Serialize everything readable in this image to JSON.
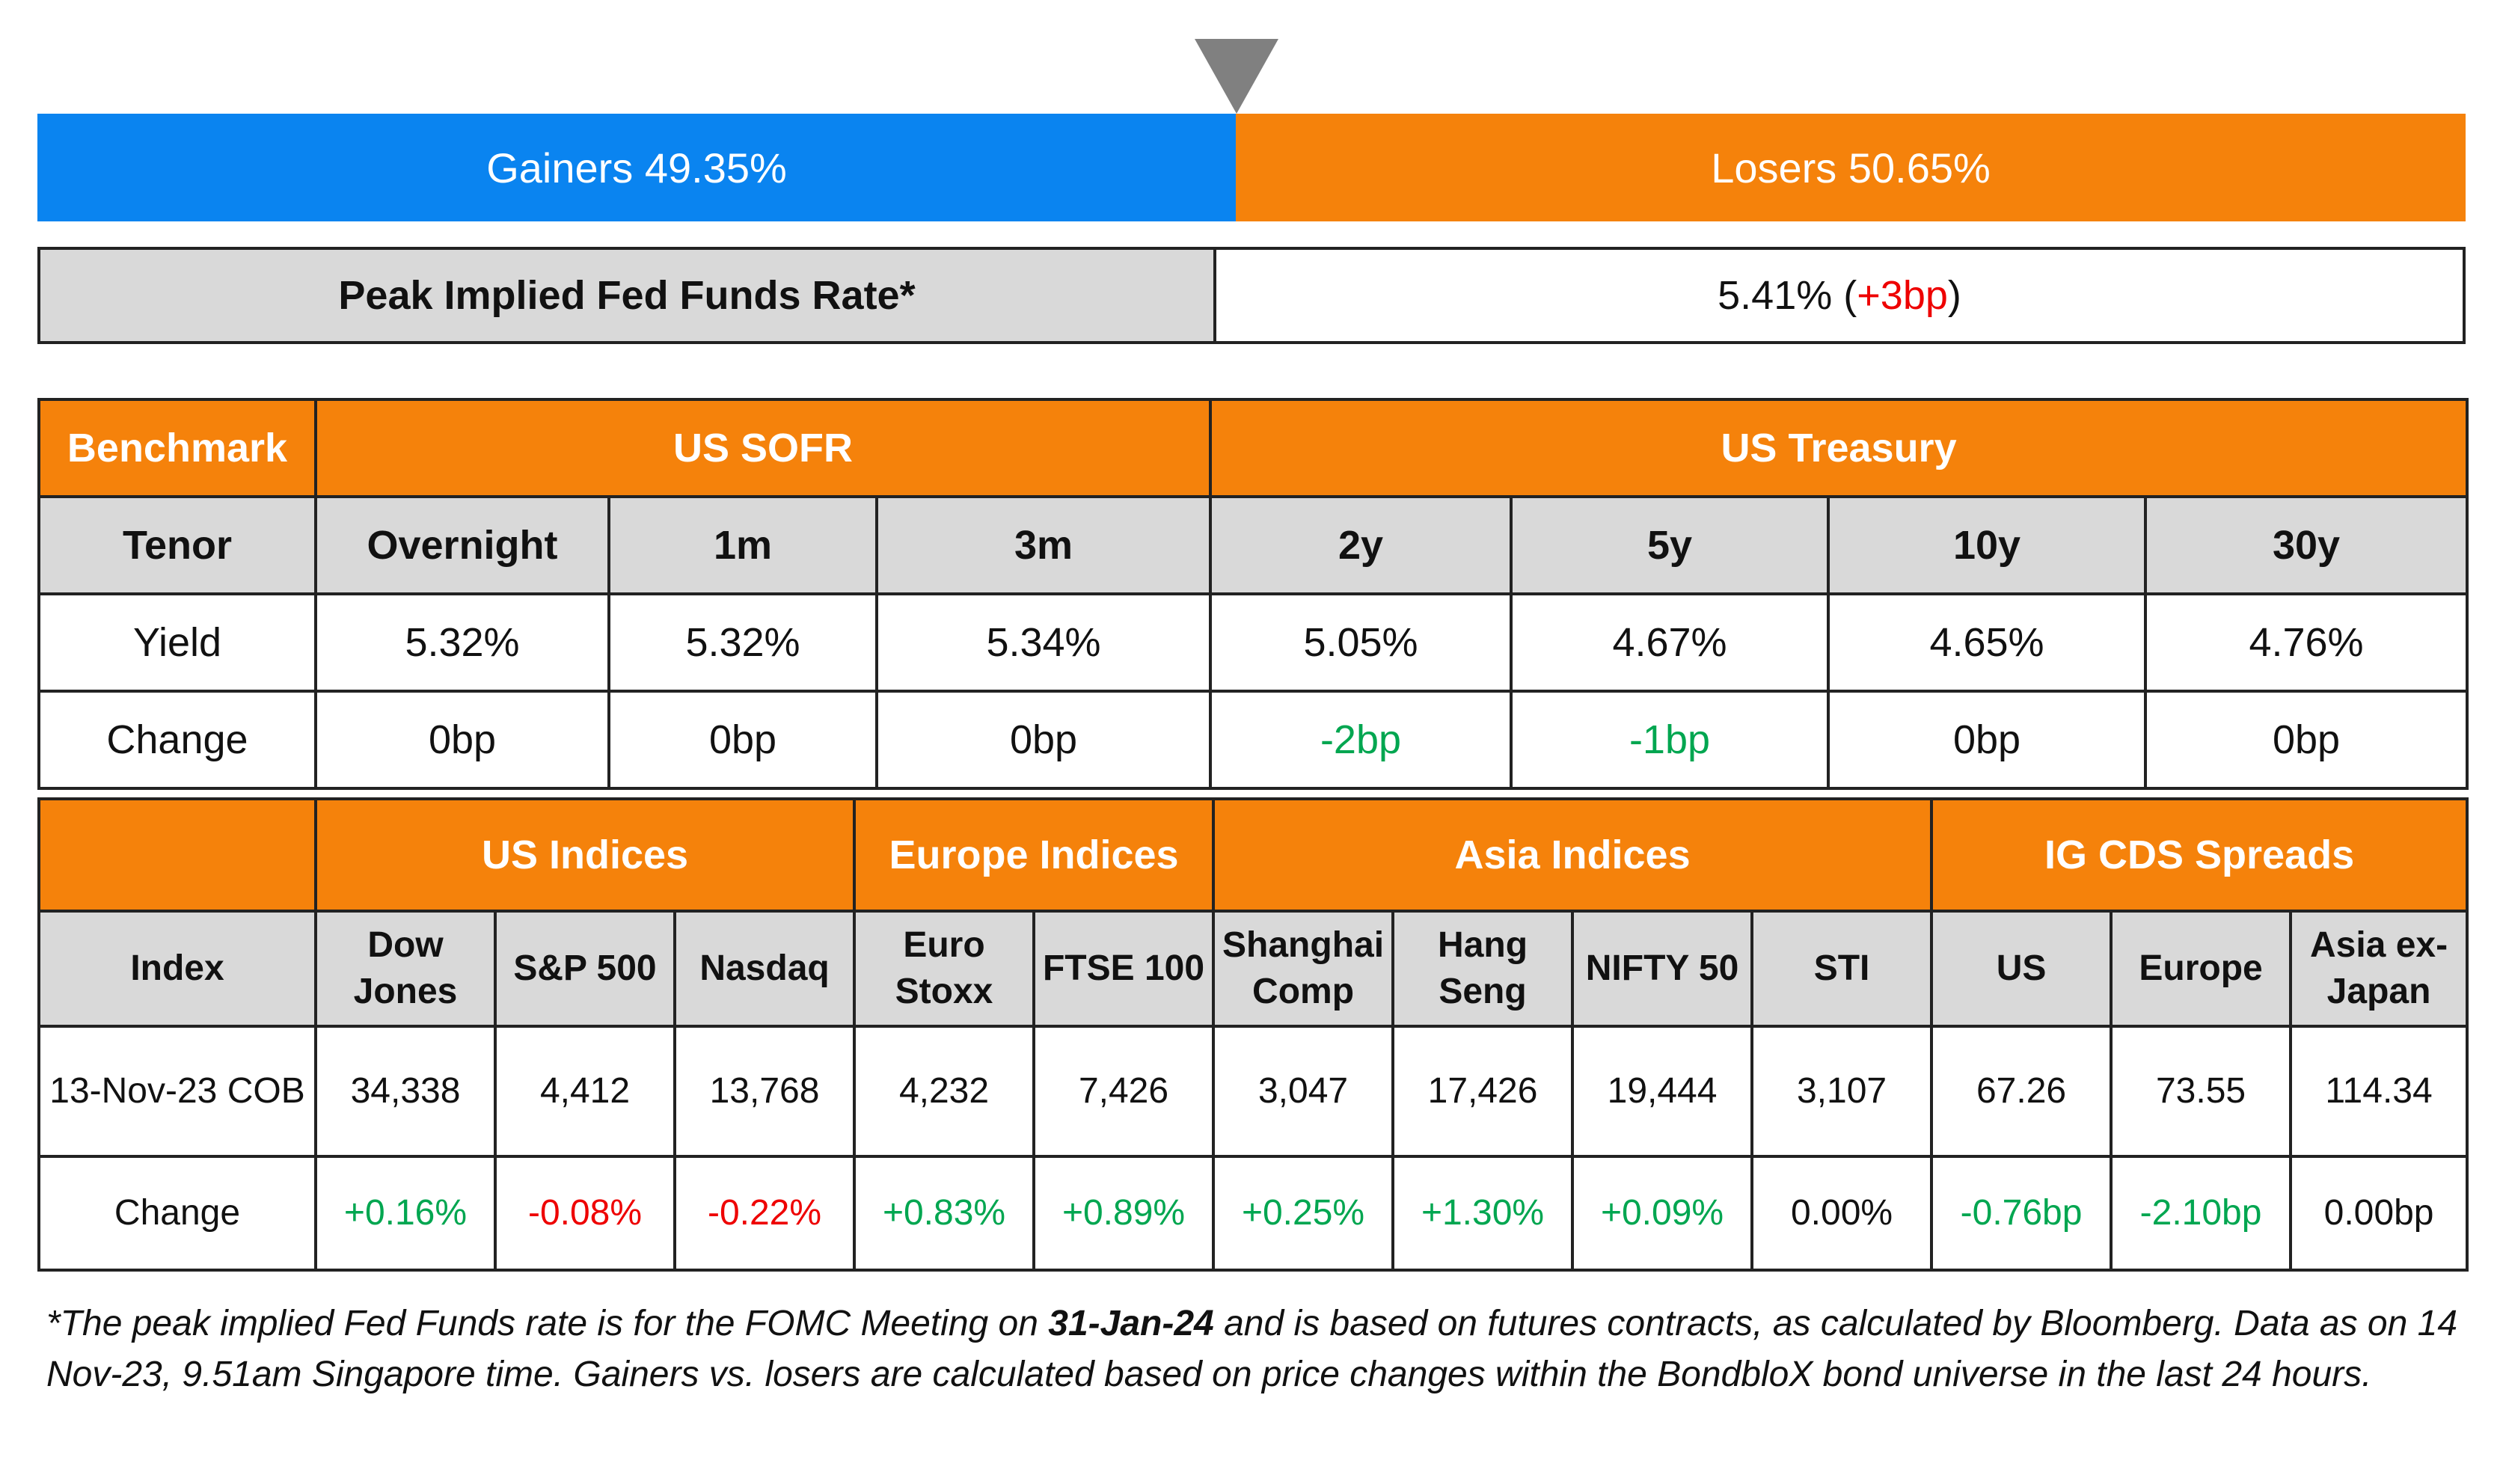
{
  "gainers_losers": {
    "gainers_label": "Gainers 49.35%",
    "losers_label": "Losers 50.65%",
    "gainers_pct": 49.35,
    "losers_pct": 50.65,
    "gainers_color": "#0a84f0",
    "losers_color": "#f5820b",
    "marker_icon": "triangle-down-icon"
  },
  "fed": {
    "label": "Peak Implied Fed Funds Rate*",
    "value": "5.41%",
    "change": "+3bp"
  },
  "rates": {
    "benchmark_label": "Benchmark",
    "sofr_label": "US SOFR",
    "treasury_label": "US Treasury",
    "tenor_label": "Tenor",
    "yield_label": "Yield",
    "change_label": "Change",
    "tenors": [
      "Overnight",
      "1m",
      "3m",
      "2y",
      "5y",
      "10y",
      "30y"
    ],
    "yields": [
      "5.32%",
      "5.32%",
      "5.34%",
      "5.05%",
      "4.67%",
      "4.65%",
      "4.76%"
    ],
    "changes": [
      "0bp",
      "0bp",
      "0bp",
      "-2bp",
      "-1bp",
      "0bp",
      "0bp"
    ]
  },
  "indices": {
    "groups": [
      "US Indices",
      "Europe Indices",
      "Asia Indices",
      "IG CDS Spreads"
    ],
    "index_label": "Index",
    "date_label": "13-Nov-23 COB",
    "change_label": "Change",
    "names": [
      "Dow Jones",
      "S&P 500",
      "Nasdaq",
      "Euro Stoxx",
      "FTSE 100",
      "Shanghai Comp",
      "Hang Seng",
      "NIFTY 50",
      "STI",
      "US",
      "Europe",
      "Asia ex-Japan"
    ],
    "values": [
      "34,338",
      "4,412",
      "13,768",
      "4,232",
      "7,426",
      "3,047",
      "17,426",
      "19,444",
      "3,107",
      "67.26",
      "73.55",
      "114.34"
    ],
    "changes": [
      "+0.16%",
      "-0.08%",
      "-0.22%",
      "+0.83%",
      "+0.89%",
      "+0.25%",
      "+1.30%",
      "+0.09%",
      "0.00%",
      "-0.76bp",
      "-2.10bp",
      "0.00bp"
    ]
  },
  "footnote": {
    "text_1": "*The peak implied Fed Funds rate is for the FOMC Meeting on ",
    "date": "31-Jan-24",
    "text_2": " and is based on futures contracts, as calculated by Bloomberg. Data as on 14 Nov-23, 9.51am Singapore time. Gainers vs. losers are calculated based on price changes within the BondbloX bond universe in the last 24 hours."
  },
  "colors": {
    "accent_orange": "#f5820b",
    "accent_blue": "#0a84f0",
    "header_grey": "#d9d9d9",
    "positive_green": "#00a650",
    "negative_red": "#ee0000"
  }
}
